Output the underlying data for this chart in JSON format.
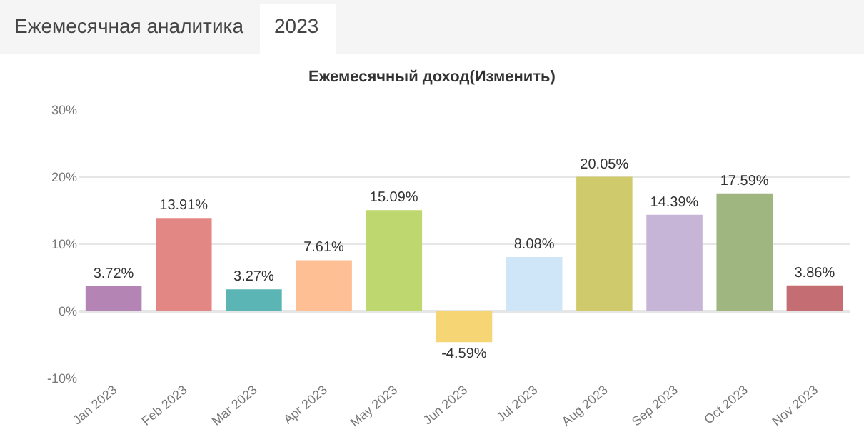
{
  "chart_data": {
    "type": "bar",
    "title": "Ежемесячный доход(Изменить)",
    "annotations": [
      "Ежемесячная аналитика",
      "2023"
    ],
    "categories": [
      "Jan 2023",
      "Feb 2023",
      "Mar 2023",
      "Apr 2023",
      "May 2023",
      "Jun 2023",
      "Jul 2023",
      "Aug 2023",
      "Sep 2023",
      "Oct 2023",
      "Nov 2023"
    ],
    "values": [
      3.72,
      13.91,
      3.27,
      7.61,
      15.09,
      -4.59,
      8.08,
      20.05,
      14.39,
      17.59,
      3.86
    ],
    "value_labels": [
      "3.72%",
      "13.91%",
      "3.27%",
      "7.61%",
      "15.09%",
      "-4.59%",
      "8.08%",
      "20.05%",
      "14.39%",
      "17.59%",
      "3.86%"
    ],
    "colors": [
      "#b384b4",
      "#e38785",
      "#5bb5b5",
      "#ffbf94",
      "#bed76e",
      "#f6d574",
      "#cfe5f8",
      "#cfca6c",
      "#c6b5d7",
      "#9fb681",
      "#c46e73"
    ],
    "ylim": [
      -10,
      30
    ],
    "yticks": [
      {
        "value": -10,
        "label": "-10%"
      },
      {
        "value": 0,
        "label": "0%"
      },
      {
        "value": 10,
        "label": "10%"
      },
      {
        "value": 20,
        "label": "20%"
      },
      {
        "value": 30,
        "label": "30%"
      }
    ],
    "grid": "y",
    "legend": false
  }
}
